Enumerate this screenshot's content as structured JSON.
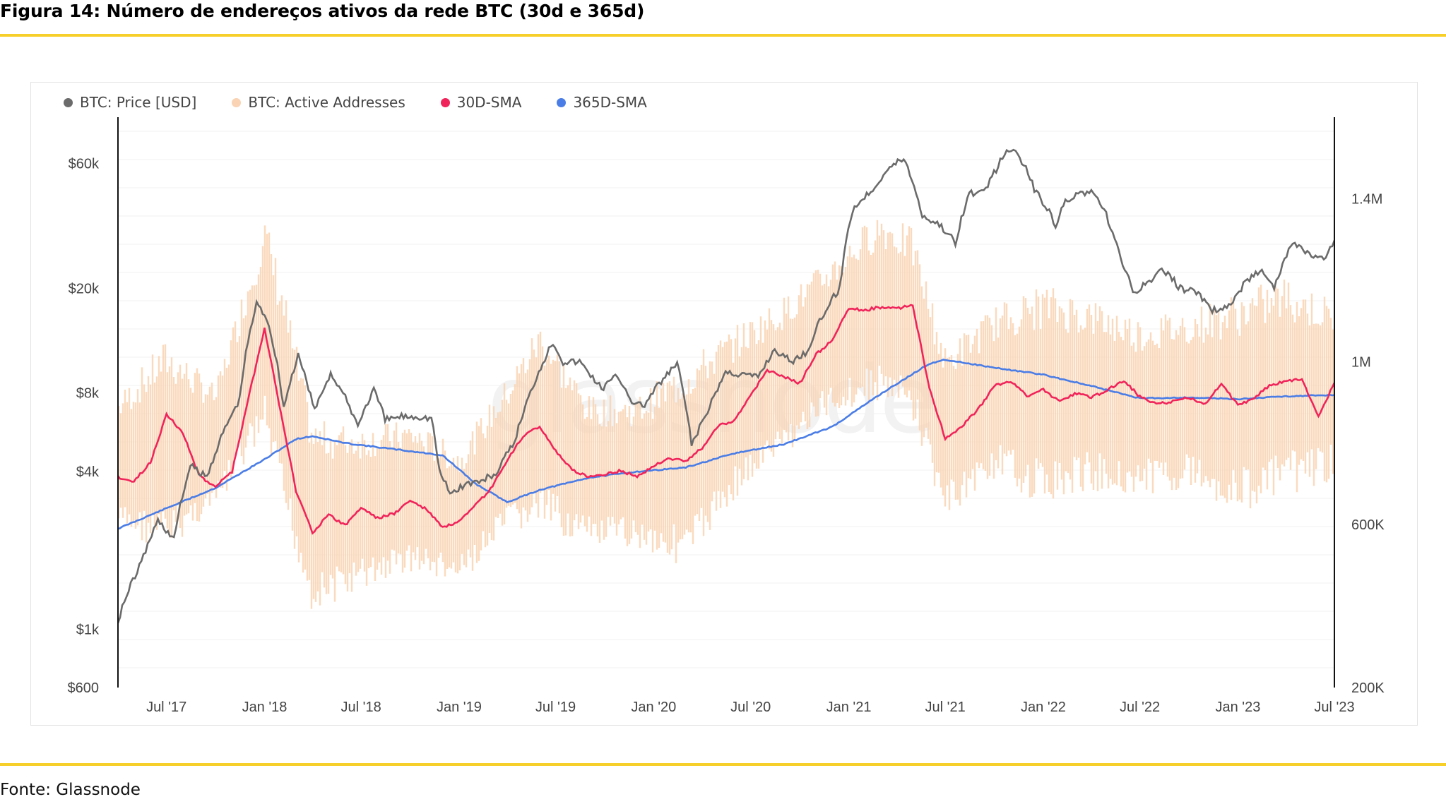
{
  "figure": {
    "title": "Figura 14: Número de endereços ativos da rede BTC (30d e 365d)",
    "source": "Fonte: Glassnode",
    "watermark": "glassnode"
  },
  "colors": {
    "rule": "#f7cf2a",
    "price": "#6b6b6b",
    "active": "#f9d3b3",
    "sma30": "#f0245a",
    "sma365": "#4a7de6"
  },
  "chart_data": {
    "type": "line",
    "legend": [
      {
        "name": "BTC: Price [USD]",
        "color": "#6b6b6b"
      },
      {
        "name": "BTC: Active Addresses",
        "color": "#f9d3b3"
      },
      {
        "name": "30D-SMA",
        "color": "#f0245a"
      },
      {
        "name": "365D-SMA",
        "color": "#4a7de6"
      }
    ],
    "legend_position": "top-left",
    "x_ticks": [
      "Jul '17",
      "Jan '18",
      "Jul '18",
      "Jan '19",
      "Jul '19",
      "Jan '20",
      "Jul '20",
      "Jan '21",
      "Jul '21",
      "Jan '22",
      "Jul '22",
      "Jan '23",
      "Jul '23"
    ],
    "x_range": [
      "2017-04-01",
      "2023-07-01"
    ],
    "y_left": {
      "scale": "log",
      "range": [
        600,
        90000
      ],
      "ticks": [
        600,
        1000,
        4000,
        8000,
        20000,
        60000
      ],
      "tick_labels": [
        "$600",
        "$1k",
        "$4k",
        "$8k",
        "$20k",
        "$60k"
      ]
    },
    "y_right": {
      "scale": "linear",
      "range": [
        200000,
        1600000
      ],
      "ticks": [
        200000,
        600000,
        1000000,
        1400000
      ],
      "tick_labels": [
        "200K",
        "600K",
        "1M",
        "1.4M"
      ]
    },
    "series": [
      {
        "name": "BTC: Price [USD]",
        "axis": "left",
        "points": [
          [
            "2017-04-01",
            1080
          ],
          [
            "2017-05-15",
            1800
          ],
          [
            "2017-06-15",
            2600
          ],
          [
            "2017-07-15",
            2200
          ],
          [
            "2017-08-15",
            4200
          ],
          [
            "2017-09-15",
            3800
          ],
          [
            "2017-10-15",
            5600
          ],
          [
            "2017-11-15",
            7500
          ],
          [
            "2017-12-17",
            17500
          ],
          [
            "2018-01-05",
            15500
          ],
          [
            "2018-02-06",
            7000
          ],
          [
            "2018-03-05",
            11000
          ],
          [
            "2018-04-05",
            6800
          ],
          [
            "2018-05-05",
            9500
          ],
          [
            "2018-06-25",
            6000
          ],
          [
            "2018-07-25",
            8200
          ],
          [
            "2018-08-15",
            6300
          ],
          [
            "2018-09-15",
            6500
          ],
          [
            "2018-10-15",
            6500
          ],
          [
            "2018-11-10",
            6400
          ],
          [
            "2018-11-25",
            4000
          ],
          [
            "2018-12-15",
            3300
          ],
          [
            "2019-01-15",
            3600
          ],
          [
            "2019-02-15",
            3700
          ],
          [
            "2019-03-15",
            4000
          ],
          [
            "2019-04-15",
            5200
          ],
          [
            "2019-05-15",
            8000
          ],
          [
            "2019-06-26",
            12500
          ],
          [
            "2019-07-15",
            10500
          ],
          [
            "2019-08-15",
            10500
          ],
          [
            "2019-09-25",
            8300
          ],
          [
            "2019-10-25",
            9300
          ],
          [
            "2019-11-25",
            7200
          ],
          [
            "2019-12-15",
            7200
          ],
          [
            "2020-01-15",
            8800
          ],
          [
            "2020-02-14",
            10300
          ],
          [
            "2020-03-12",
            5000
          ],
          [
            "2020-04-15",
            7000
          ],
          [
            "2020-05-15",
            9600
          ],
          [
            "2020-06-15",
            9400
          ],
          [
            "2020-07-15",
            9200
          ],
          [
            "2020-08-15",
            11700
          ],
          [
            "2020-09-15",
            10500
          ],
          [
            "2020-10-15",
            11500
          ],
          [
            "2020-11-15",
            16000
          ],
          [
            "2020-12-15",
            20000
          ],
          [
            "2021-01-08",
            40000
          ],
          [
            "2021-02-15",
            48000
          ],
          [
            "2021-03-15",
            57000
          ],
          [
            "2021-04-14",
            63000
          ],
          [
            "2021-05-19",
            38000
          ],
          [
            "2021-06-20",
            35000
          ],
          [
            "2021-07-20",
            30000
          ],
          [
            "2021-08-15",
            46000
          ],
          [
            "2021-09-15",
            47000
          ],
          [
            "2021-10-20",
            65000
          ],
          [
            "2021-11-10",
            68000
          ],
          [
            "2021-12-15",
            48000
          ],
          [
            "2022-01-24",
            35000
          ],
          [
            "2022-02-15",
            44000
          ],
          [
            "2022-03-28",
            47000
          ],
          [
            "2022-04-25",
            40000
          ],
          [
            "2022-05-15",
            30000
          ],
          [
            "2022-06-18",
            19000
          ],
          [
            "2022-07-15",
            21000
          ],
          [
            "2022-08-15",
            23500
          ],
          [
            "2022-09-15",
            20000
          ],
          [
            "2022-10-15",
            19500
          ],
          [
            "2022-11-10",
            16500
          ],
          [
            "2022-12-15",
            17000
          ],
          [
            "2023-01-15",
            21000
          ],
          [
            "2023-02-15",
            24000
          ],
          [
            "2023-03-10",
            20000
          ],
          [
            "2023-04-14",
            30000
          ],
          [
            "2023-05-15",
            27000
          ],
          [
            "2023-06-15",
            25500
          ],
          [
            "2023-07-01",
            30500
          ]
        ]
      },
      {
        "name": "30D-SMA",
        "axis": "right",
        "points": [
          [
            "2017-04-01",
            717
          ],
          [
            "2017-05-01",
            705
          ],
          [
            "2017-06-01",
            753
          ],
          [
            "2017-07-01",
            871
          ],
          [
            "2017-08-01",
            824
          ],
          [
            "2017-09-01",
            718
          ],
          [
            "2017-10-01",
            694
          ],
          [
            "2017-11-01",
            730
          ],
          [
            "2017-12-01",
            906
          ],
          [
            "2018-01-01",
            1083
          ],
          [
            "2018-02-01",
            871
          ],
          [
            "2018-03-01",
            683
          ],
          [
            "2018-04-01",
            581
          ],
          [
            "2018-05-01",
            624
          ],
          [
            "2018-06-01",
            598
          ],
          [
            "2018-07-01",
            642
          ],
          [
            "2018-08-01",
            616
          ],
          [
            "2018-09-01",
            627
          ],
          [
            "2018-10-01",
            659
          ],
          [
            "2018-11-01",
            637
          ],
          [
            "2018-12-01",
            593
          ],
          [
            "2019-01-01",
            606
          ],
          [
            "2019-02-01",
            647
          ],
          [
            "2019-03-01",
            687
          ],
          [
            "2019-04-01",
            756
          ],
          [
            "2019-05-01",
            818
          ],
          [
            "2019-06-01",
            841
          ],
          [
            "2019-07-01",
            781
          ],
          [
            "2019-08-01",
            733
          ],
          [
            "2019-09-01",
            718
          ],
          [
            "2019-10-01",
            724
          ],
          [
            "2019-11-01",
            732
          ],
          [
            "2019-12-01",
            717
          ],
          [
            "2020-01-01",
            745
          ],
          [
            "2020-02-01",
            763
          ],
          [
            "2020-03-01",
            755
          ],
          [
            "2020-04-01",
            788
          ],
          [
            "2020-05-01",
            843
          ],
          [
            "2020-06-01",
            856
          ],
          [
            "2020-07-01",
            916
          ],
          [
            "2020-08-01",
            979
          ],
          [
            "2020-09-01",
            963
          ],
          [
            "2020-10-01",
            947
          ],
          [
            "2020-11-01",
            1018
          ],
          [
            "2020-12-01",
            1052
          ],
          [
            "2021-01-01",
            1130
          ],
          [
            "2021-02-01",
            1127
          ],
          [
            "2021-03-01",
            1133
          ],
          [
            "2021-04-01",
            1131
          ],
          [
            "2021-05-01",
            1137
          ],
          [
            "2021-06-01",
            937
          ],
          [
            "2021-07-01",
            811
          ],
          [
            "2021-08-01",
            840
          ],
          [
            "2021-09-01",
            884
          ],
          [
            "2021-10-01",
            940
          ],
          [
            "2021-11-01",
            951
          ],
          [
            "2021-12-01",
            916
          ],
          [
            "2022-01-01",
            932
          ],
          [
            "2022-02-01",
            901
          ],
          [
            "2022-03-01",
            922
          ],
          [
            "2022-04-01",
            912
          ],
          [
            "2022-05-01",
            930
          ],
          [
            "2022-06-01",
            953
          ],
          [
            "2022-07-01",
            914
          ],
          [
            "2022-08-01",
            895
          ],
          [
            "2022-09-01",
            902
          ],
          [
            "2022-10-01",
            912
          ],
          [
            "2022-11-01",
            895
          ],
          [
            "2022-12-01",
            946
          ],
          [
            "2023-01-01",
            892
          ],
          [
            "2023-02-01",
            912
          ],
          [
            "2023-03-01",
            941
          ],
          [
            "2023-04-01",
            952
          ],
          [
            "2023-05-01",
            958
          ],
          [
            "2023-06-01",
            864
          ],
          [
            "2023-07-01",
            948
          ]
        ]
      },
      {
        "name": "365D-SMA",
        "axis": "right",
        "points": [
          [
            "2017-04-01",
            590
          ],
          [
            "2017-07-01",
            640
          ],
          [
            "2017-10-01",
            690
          ],
          [
            "2018-01-01",
            760
          ],
          [
            "2018-03-01",
            810
          ],
          [
            "2018-04-01",
            817
          ],
          [
            "2018-06-01",
            800
          ],
          [
            "2018-09-01",
            785
          ],
          [
            "2018-12-01",
            770
          ],
          [
            "2019-02-01",
            700
          ],
          [
            "2019-04-01",
            655
          ],
          [
            "2019-06-01",
            685
          ],
          [
            "2019-09-01",
            715
          ],
          [
            "2019-12-01",
            730
          ],
          [
            "2020-03-01",
            740
          ],
          [
            "2020-06-01",
            775
          ],
          [
            "2020-09-01",
            797
          ],
          [
            "2020-12-01",
            840
          ],
          [
            "2021-03-01",
            920
          ],
          [
            "2021-06-01",
            995
          ],
          [
            "2021-07-01",
            1005
          ],
          [
            "2021-10-01",
            985
          ],
          [
            "2022-01-01",
            968
          ],
          [
            "2022-04-01",
            940
          ],
          [
            "2022-07-01",
            910
          ],
          [
            "2022-10-01",
            912
          ],
          [
            "2023-01-01",
            908
          ],
          [
            "2023-04-01",
            915
          ],
          [
            "2023-07-01",
            918
          ]
        ]
      },
      {
        "name": "BTC: Active Addresses",
        "axis": "right",
        "type": "band",
        "points": [
          [
            "2017-04-01",
            650,
            850
          ],
          [
            "2017-07-01",
            640,
            950
          ],
          [
            "2017-10-01",
            700,
            880
          ],
          [
            "2018-01-01",
            920,
            1250
          ],
          [
            "2018-02-01",
            760,
            1100
          ],
          [
            "2018-04-01",
            480,
            760
          ],
          [
            "2018-07-01",
            520,
            760
          ],
          [
            "2018-10-01",
            560,
            780
          ],
          [
            "2019-01-01",
            520,
            720
          ],
          [
            "2019-04-01",
            650,
            880
          ],
          [
            "2019-06-01",
            700,
            1000
          ],
          [
            "2019-09-01",
            620,
            840
          ],
          [
            "2019-12-01",
            620,
            840
          ],
          [
            "2020-03-01",
            600,
            900
          ],
          [
            "2020-06-01",
            750,
            1000
          ],
          [
            "2020-09-01",
            850,
            1080
          ],
          [
            "2020-12-01",
            950,
            1180
          ],
          [
            "2021-03-01",
            1000,
            1280
          ],
          [
            "2021-05-01",
            950,
            1230
          ],
          [
            "2021-07-01",
            700,
            950
          ],
          [
            "2021-10-01",
            800,
            1050
          ],
          [
            "2022-01-01",
            760,
            1080
          ],
          [
            "2022-04-01",
            780,
            1060
          ],
          [
            "2022-07-01",
            760,
            1020
          ],
          [
            "2022-10-01",
            780,
            1040
          ],
          [
            "2023-01-01",
            740,
            1060
          ],
          [
            "2023-04-01",
            780,
            1100
          ],
          [
            "2023-07-01",
            800,
            1060
          ]
        ]
      }
    ]
  }
}
